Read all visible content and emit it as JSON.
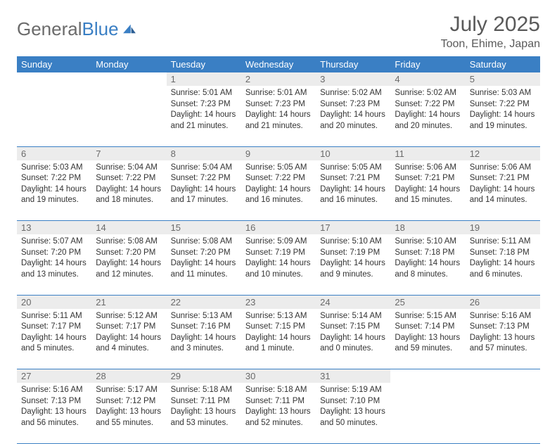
{
  "brand": {
    "part1": "General",
    "part2": "Blue"
  },
  "title": "July 2025",
  "location": "Toon, Ehime, Japan",
  "colors": {
    "header_bg": "#3a7fc4",
    "header_fg": "#ffffff",
    "daynum_bg": "#ececec",
    "daynum_fg": "#6a6a6a",
    "rule": "#3a7fc4",
    "text": "#333333",
    "title_fg": "#5a5a5a"
  },
  "weekdays": [
    "Sunday",
    "Monday",
    "Tuesday",
    "Wednesday",
    "Thursday",
    "Friday",
    "Saturday"
  ],
  "weeks": [
    [
      null,
      null,
      {
        "n": "1",
        "sr": "5:01 AM",
        "ss": "7:23 PM",
        "dl": "14 hours and 21 minutes."
      },
      {
        "n": "2",
        "sr": "5:01 AM",
        "ss": "7:23 PM",
        "dl": "14 hours and 21 minutes."
      },
      {
        "n": "3",
        "sr": "5:02 AM",
        "ss": "7:23 PM",
        "dl": "14 hours and 20 minutes."
      },
      {
        "n": "4",
        "sr": "5:02 AM",
        "ss": "7:22 PM",
        "dl": "14 hours and 20 minutes."
      },
      {
        "n": "5",
        "sr": "5:03 AM",
        "ss": "7:22 PM",
        "dl": "14 hours and 19 minutes."
      }
    ],
    [
      {
        "n": "6",
        "sr": "5:03 AM",
        "ss": "7:22 PM",
        "dl": "14 hours and 19 minutes."
      },
      {
        "n": "7",
        "sr": "5:04 AM",
        "ss": "7:22 PM",
        "dl": "14 hours and 18 minutes."
      },
      {
        "n": "8",
        "sr": "5:04 AM",
        "ss": "7:22 PM",
        "dl": "14 hours and 17 minutes."
      },
      {
        "n": "9",
        "sr": "5:05 AM",
        "ss": "7:22 PM",
        "dl": "14 hours and 16 minutes."
      },
      {
        "n": "10",
        "sr": "5:05 AM",
        "ss": "7:21 PM",
        "dl": "14 hours and 16 minutes."
      },
      {
        "n": "11",
        "sr": "5:06 AM",
        "ss": "7:21 PM",
        "dl": "14 hours and 15 minutes."
      },
      {
        "n": "12",
        "sr": "5:06 AM",
        "ss": "7:21 PM",
        "dl": "14 hours and 14 minutes."
      }
    ],
    [
      {
        "n": "13",
        "sr": "5:07 AM",
        "ss": "7:20 PM",
        "dl": "14 hours and 13 minutes."
      },
      {
        "n": "14",
        "sr": "5:08 AM",
        "ss": "7:20 PM",
        "dl": "14 hours and 12 minutes."
      },
      {
        "n": "15",
        "sr": "5:08 AM",
        "ss": "7:20 PM",
        "dl": "14 hours and 11 minutes."
      },
      {
        "n": "16",
        "sr": "5:09 AM",
        "ss": "7:19 PM",
        "dl": "14 hours and 10 minutes."
      },
      {
        "n": "17",
        "sr": "5:10 AM",
        "ss": "7:19 PM",
        "dl": "14 hours and 9 minutes."
      },
      {
        "n": "18",
        "sr": "5:10 AM",
        "ss": "7:18 PM",
        "dl": "14 hours and 8 minutes."
      },
      {
        "n": "19",
        "sr": "5:11 AM",
        "ss": "7:18 PM",
        "dl": "14 hours and 6 minutes."
      }
    ],
    [
      {
        "n": "20",
        "sr": "5:11 AM",
        "ss": "7:17 PM",
        "dl": "14 hours and 5 minutes."
      },
      {
        "n": "21",
        "sr": "5:12 AM",
        "ss": "7:17 PM",
        "dl": "14 hours and 4 minutes."
      },
      {
        "n": "22",
        "sr": "5:13 AM",
        "ss": "7:16 PM",
        "dl": "14 hours and 3 minutes."
      },
      {
        "n": "23",
        "sr": "5:13 AM",
        "ss": "7:15 PM",
        "dl": "14 hours and 1 minute."
      },
      {
        "n": "24",
        "sr": "5:14 AM",
        "ss": "7:15 PM",
        "dl": "14 hours and 0 minutes."
      },
      {
        "n": "25",
        "sr": "5:15 AM",
        "ss": "7:14 PM",
        "dl": "13 hours and 59 minutes."
      },
      {
        "n": "26",
        "sr": "5:16 AM",
        "ss": "7:13 PM",
        "dl": "13 hours and 57 minutes."
      }
    ],
    [
      {
        "n": "27",
        "sr": "5:16 AM",
        "ss": "7:13 PM",
        "dl": "13 hours and 56 minutes."
      },
      {
        "n": "28",
        "sr": "5:17 AM",
        "ss": "7:12 PM",
        "dl": "13 hours and 55 minutes."
      },
      {
        "n": "29",
        "sr": "5:18 AM",
        "ss": "7:11 PM",
        "dl": "13 hours and 53 minutes."
      },
      {
        "n": "30",
        "sr": "5:18 AM",
        "ss": "7:11 PM",
        "dl": "13 hours and 52 minutes."
      },
      {
        "n": "31",
        "sr": "5:19 AM",
        "ss": "7:10 PM",
        "dl": "13 hours and 50 minutes."
      },
      null,
      null
    ]
  ],
  "labels": {
    "sunrise": "Sunrise:",
    "sunset": "Sunset:",
    "daylight": "Daylight:"
  }
}
